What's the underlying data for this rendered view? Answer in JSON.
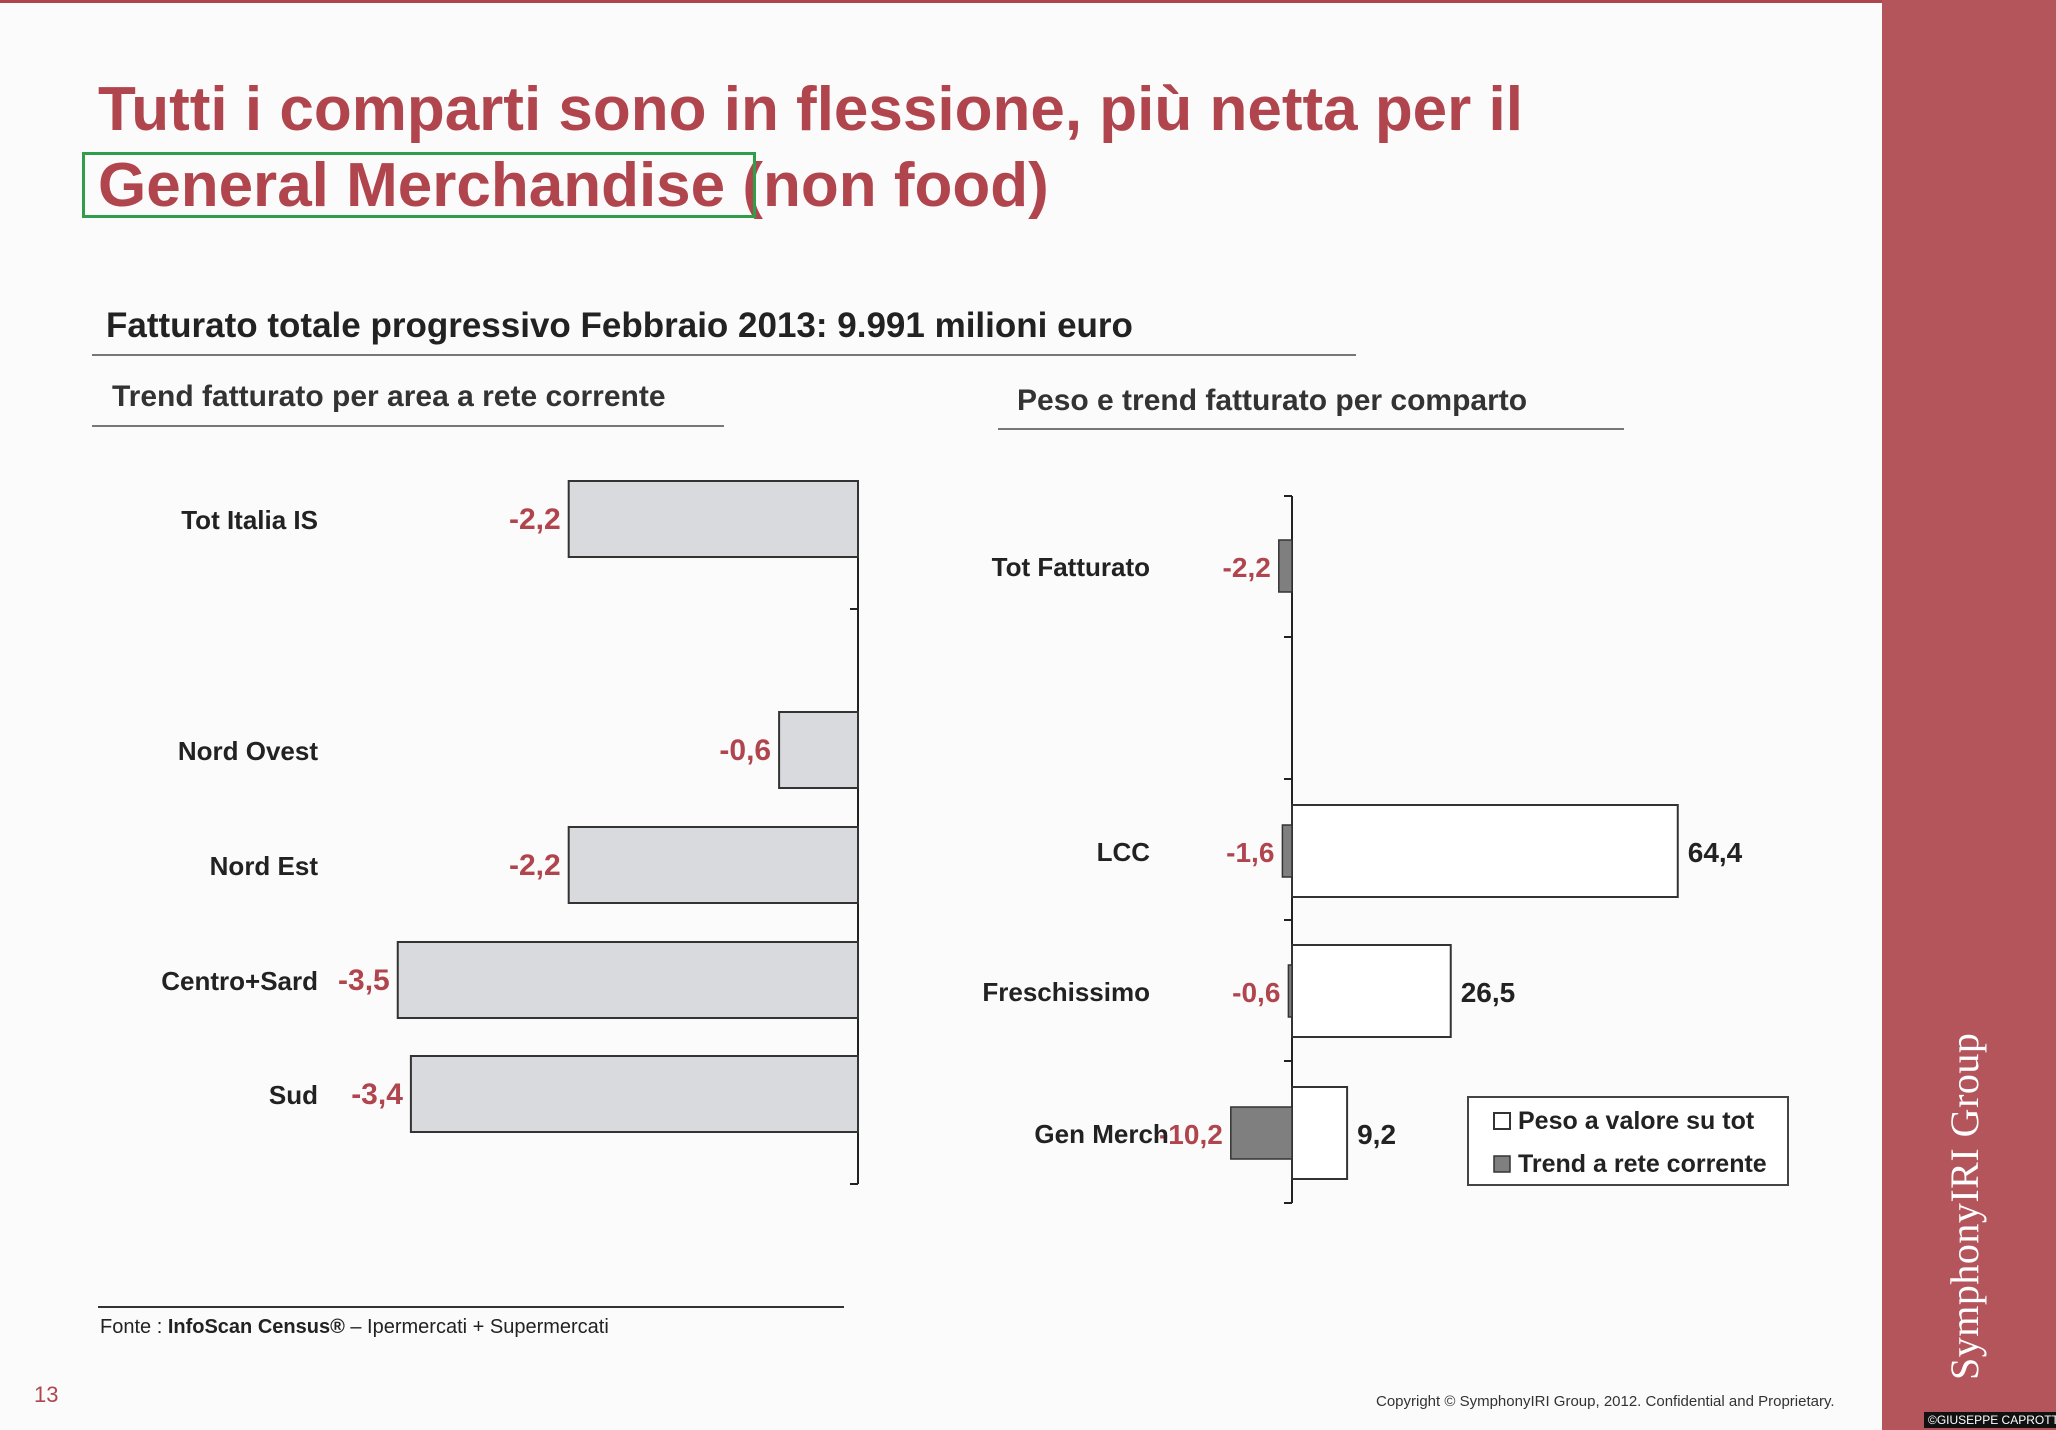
{
  "title_line1": "Tutti i comparti sono in flessione, più netta per il",
  "title_highlight": "General Merchandise",
  "title_rest": "(non food)",
  "subtitle": "Fatturato totale progressivo Febbraio 2013: 9.991 milioni euro",
  "source_prefix": "Fonte : ",
  "source_bold": "InfoScan Census®",
  "source_rest": " – Ipermercati + Supermercati",
  "page_number": "13",
  "copyright": "Copyright © SymphonyIRI Group, 2012. Confidential and Proprietary.",
  "brand": "SymphonyIRI Group",
  "watermark": "©GIUSEPPE CAPROTTI",
  "colors": {
    "accent": "#b0454d",
    "bar_fill": "#d9dadd",
    "trend_fill": "#7f7f7f",
    "band": "#b4545b"
  },
  "chart_data": [
    {
      "type": "bar",
      "orientation": "horizontal",
      "title": "Trend fatturato per area a rete corrente",
      "categories": [
        "Tot Italia IS",
        "Nord Ovest",
        "Nord Est",
        "Centro+Sard",
        "Sud"
      ],
      "values": [
        -2.2,
        -0.6,
        -2.2,
        -3.5,
        -3.4
      ],
      "labels": [
        "-2,2",
        "-0,6",
        "-2,2",
        "-3,5",
        "-3,4"
      ]
    },
    {
      "type": "bar",
      "orientation": "horizontal",
      "title": "Peso e trend fatturato per comparto",
      "categories": [
        "Tot Fatturato",
        "LCC",
        "Freschissimo",
        "Gen Merch"
      ],
      "series": [
        {
          "name": "Peso a valore su tot",
          "values": [
            null,
            64.4,
            26.5,
            9.2
          ],
          "labels": [
            "",
            "64,4",
            "26,5",
            "9,2"
          ]
        },
        {
          "name": "Trend a rete corrente",
          "values": [
            -2.2,
            -1.6,
            -0.6,
            -10.2
          ],
          "labels": [
            "-2,2",
            "-1,6",
            "-0,6",
            "-10,2"
          ]
        }
      ],
      "legend": "bottom-right"
    }
  ]
}
